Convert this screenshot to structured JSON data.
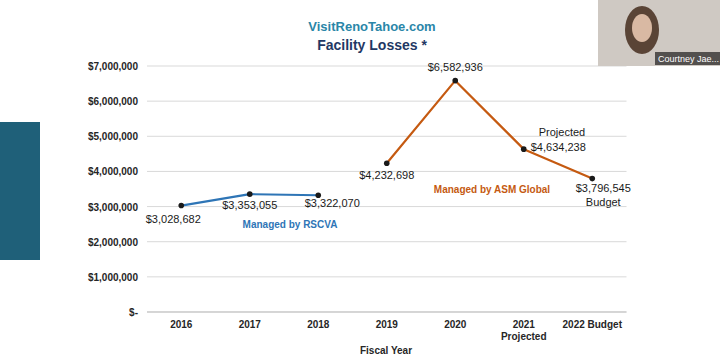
{
  "chart_data": {
    "type": "line",
    "subtitle": "VisitRenoTahoe.com",
    "title": "Facility Losses *",
    "x_label": "Fiscal Year",
    "categories": [
      "2016",
      "2017",
      "2018",
      "2019",
      "2020",
      "2021\nProjected",
      "2022 Budget"
    ],
    "series": [
      {
        "name": "Managed by RSCVA",
        "color": "#2e75b6",
        "marker": "circle",
        "values": [
          3028682,
          3353055,
          3322070,
          null,
          null,
          null,
          null
        ],
        "value_labels": [
          "$3,028,682",
          "$3,353,055",
          "$3,322,070",
          null,
          null,
          null,
          null
        ]
      },
      {
        "name": "Managed by ASM Global",
        "color": "#c55a11",
        "marker": "circle",
        "values": [
          null,
          null,
          null,
          4232698,
          6582936,
          4634238,
          3796545
        ],
        "value_labels": [
          null,
          null,
          null,
          "$4,232,698",
          "$6,582,936",
          "$4,634,238",
          "$3,796,545"
        ]
      }
    ],
    "annotations": [
      {
        "text": "Projected",
        "series": 1,
        "index": 5
      },
      {
        "text": "Budget",
        "series": 1,
        "index": 6
      }
    ],
    "ylim": [
      0,
      7000000
    ],
    "yticks": [
      {
        "value": 0,
        "label": "$-"
      },
      {
        "value": 1000000,
        "label": "$1,000,000"
      },
      {
        "value": 2000000,
        "label": "$2,000,000"
      },
      {
        "value": 3000000,
        "label": "$3,000,000"
      },
      {
        "value": 4000000,
        "label": "$4,000,000"
      },
      {
        "value": 5000000,
        "label": "$5,000,000"
      },
      {
        "value": 6000000,
        "label": "$6,000,000"
      },
      {
        "value": 7000000,
        "label": "$7,000,000"
      }
    ],
    "grid": true,
    "data_labels": true
  },
  "video_tile": {
    "label": "Courtney Jae..."
  }
}
